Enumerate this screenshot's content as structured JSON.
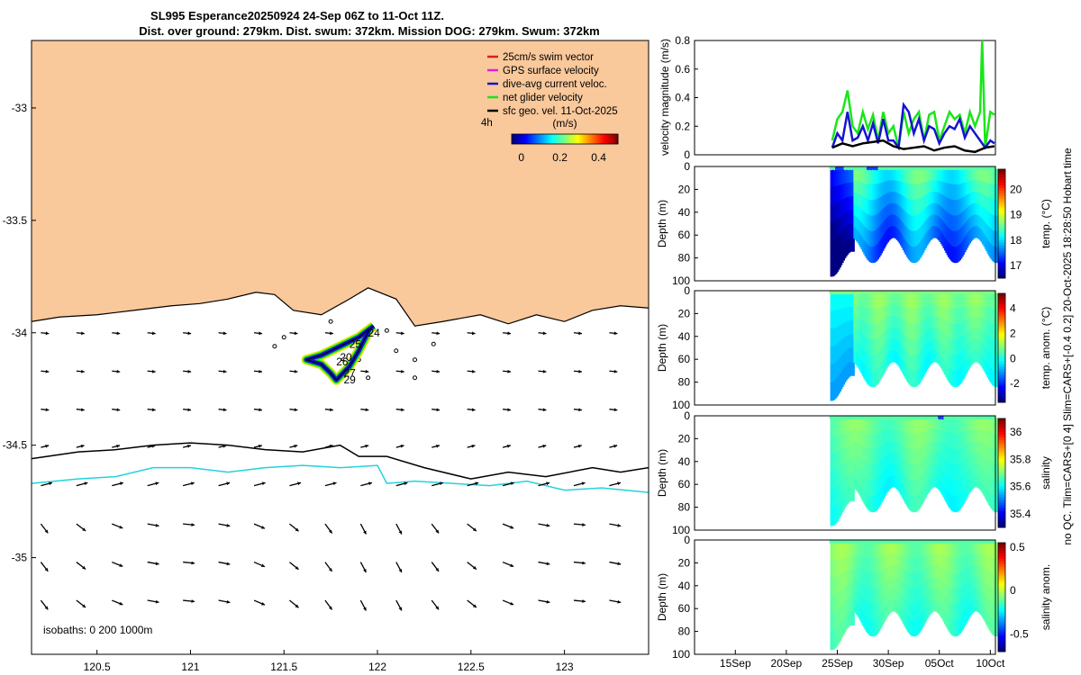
{
  "title": {
    "line1": "SL995 Esperance20250924 24-Sep 06Z to 11-Oct 11Z.",
    "line2": "Dist. over ground: 279km. Dist. swum: 372km. Mission DOG: 279km. Swum: 372km"
  },
  "side_text": "no QC. Tlim=CARS+[0 4] Slim=CARS+[-0.4 0.2] 20-Oct-2025 18:28:50 Hobart time",
  "colors": {
    "land": "#f9c89b",
    "coast": "#000000",
    "isobath1000": "#22d3dd",
    "green": "#19e619",
    "blue": "#1414d2"
  },
  "chart_data": [
    {
      "type": "map",
      "name": "glider track map",
      "xlim": [
        120.15,
        123.45
      ],
      "ylim": [
        -35.43,
        -32.7
      ],
      "x_ticks": [
        120.5,
        121,
        121.5,
        122,
        122.5,
        123
      ],
      "x_tick_labels": [
        "120.5",
        "121",
        "121.5",
        "122",
        "122.5",
        "123"
      ],
      "y_ticks": [
        -33,
        -33.5,
        -34,
        -34.5,
        -35
      ],
      "y_tick_labels": [
        "-33",
        "-33.5",
        "-34",
        "-34.5",
        "-35"
      ],
      "legend": [
        {
          "label": "25cm/s swim vector",
          "color": "#d62020"
        },
        {
          "label": "GPS surface velocity",
          "color": "#e020e0"
        },
        {
          "label": "dive-avg current veloc.",
          "color": "#1414d2"
        },
        {
          "label": "net glider velocity",
          "color": "#19e619"
        },
        {
          "label": "sfc geo. vel. 11-Oct-2025",
          "color": "#000000"
        }
      ],
      "legend_marker_label": "4h",
      "colorbar": {
        "label": "(m/s)",
        "ticks": [
          0,
          0.2,
          0.4
        ],
        "tick_labels": [
          "0",
          "0.2",
          "0.4"
        ],
        "range": [
          -0.05,
          0.5
        ]
      },
      "isobaths_label": "isobaths: 0   200  1000m",
      "track_labels": [
        "24",
        "25",
        "20",
        "27",
        "29",
        "26"
      ],
      "coastline": [
        [
          120.15,
          -33.95
        ],
        [
          120.3,
          -33.93
        ],
        [
          120.5,
          -33.92
        ],
        [
          120.7,
          -33.9
        ],
        [
          120.9,
          -33.88
        ],
        [
          121.05,
          -33.87
        ],
        [
          121.2,
          -33.85
        ],
        [
          121.35,
          -33.82
        ],
        [
          121.45,
          -33.83
        ],
        [
          121.55,
          -33.9
        ],
        [
          121.7,
          -33.92
        ],
        [
          121.85,
          -33.85
        ],
        [
          121.95,
          -33.8
        ],
        [
          122.1,
          -33.85
        ],
        [
          122.2,
          -33.97
        ],
        [
          122.35,
          -33.95
        ],
        [
          122.55,
          -33.92
        ],
        [
          122.7,
          -33.96
        ],
        [
          122.85,
          -33.92
        ],
        [
          123.0,
          -33.95
        ],
        [
          123.15,
          -33.9
        ],
        [
          123.3,
          -33.88
        ],
        [
          123.45,
          -33.89
        ]
      ],
      "isobath_200": [
        [
          120.15,
          -34.56
        ],
        [
          120.4,
          -34.53
        ],
        [
          120.6,
          -34.52
        ],
        [
          120.8,
          -34.5
        ],
        [
          121.0,
          -34.49
        ],
        [
          121.2,
          -34.5
        ],
        [
          121.4,
          -34.52
        ],
        [
          121.6,
          -34.53
        ],
        [
          121.8,
          -34.5
        ],
        [
          121.9,
          -34.55
        ],
        [
          122.05,
          -34.55
        ],
        [
          122.25,
          -34.6
        ],
        [
          122.5,
          -34.65
        ],
        [
          122.7,
          -34.62
        ],
        [
          122.9,
          -34.64
        ],
        [
          123.15,
          -34.6
        ],
        [
          123.3,
          -34.62
        ],
        [
          123.45,
          -34.6
        ]
      ],
      "isobath_1000": [
        [
          120.15,
          -34.67
        ],
        [
          120.4,
          -34.65
        ],
        [
          120.6,
          -34.64
        ],
        [
          120.8,
          -34.6
        ],
        [
          121.0,
          -34.6
        ],
        [
          121.2,
          -34.62
        ],
        [
          121.4,
          -34.6
        ],
        [
          121.6,
          -34.59
        ],
        [
          121.8,
          -34.6
        ],
        [
          122.0,
          -34.59
        ],
        [
          122.05,
          -34.67
        ],
        [
          122.2,
          -34.66
        ],
        [
          122.4,
          -34.67
        ],
        [
          122.6,
          -34.68
        ],
        [
          122.8,
          -34.66
        ],
        [
          123.0,
          -34.7
        ],
        [
          123.2,
          -34.69
        ],
        [
          123.45,
          -34.71
        ]
      ],
      "track": [
        [
          121.98,
          -33.97
        ],
        [
          121.9,
          -34.02
        ],
        [
          121.8,
          -34.06
        ],
        [
          121.7,
          -34.1
        ],
        [
          121.62,
          -34.12
        ],
        [
          121.7,
          -34.14
        ],
        [
          121.75,
          -34.18
        ],
        [
          121.78,
          -34.21
        ],
        [
          121.85,
          -34.15
        ],
        [
          121.9,
          -34.08
        ],
        [
          121.96,
          -33.98
        ]
      ]
    },
    {
      "type": "line",
      "name": "velocity magnitude",
      "ylabel": "velocity magnitude (m/s)",
      "ylim": [
        0,
        0.8
      ],
      "y_ticks": [
        0,
        0.2,
        0.4,
        0.6,
        0.8
      ],
      "x_range_days": [
        11,
        40.5
      ],
      "x_ticks_days": [
        15,
        20,
        25,
        30,
        35,
        40
      ],
      "x_tick_labels": [
        "15Sep",
        "20Sep",
        "25Sep",
        "30Sep",
        "05Oct",
        "10Oct"
      ],
      "series": [
        {
          "name": "net glider velocity",
          "color": "#19e619",
          "x": [
            24.5,
            25,
            25.5,
            26,
            26.5,
            27,
            27.5,
            28,
            28.5,
            29,
            29.5,
            30,
            30.5,
            31,
            31.5,
            32,
            32.5,
            33,
            33.5,
            34,
            34.5,
            35,
            35.5,
            36,
            36.5,
            37,
            37.5,
            38,
            38.5,
            39,
            39.2,
            39.5,
            40,
            40.4
          ],
          "y": [
            0.1,
            0.25,
            0.3,
            0.45,
            0.2,
            0.15,
            0.3,
            0.18,
            0.28,
            0.1,
            0.3,
            0.15,
            0.2,
            0.05,
            0.3,
            0.15,
            0.25,
            0.3,
            0.1,
            0.28,
            0.3,
            0.1,
            0.2,
            0.3,
            0.25,
            0.28,
            0.15,
            0.3,
            0.2,
            0.3,
            0.8,
            0.05,
            0.3,
            0.28
          ]
        },
        {
          "name": "dive-avg current veloc.",
          "color": "#1414d2",
          "x": [
            24.5,
            25,
            25.5,
            26,
            26.5,
            27,
            27.5,
            28,
            28.5,
            29,
            29.5,
            30,
            30.5,
            31,
            31.5,
            32,
            32.5,
            33,
            33.5,
            34,
            34.5,
            35,
            35.5,
            36,
            36.5,
            37,
            37.5,
            38,
            38.5,
            39,
            39.5,
            40,
            40.4
          ],
          "y": [
            0.05,
            0.15,
            0.1,
            0.3,
            0.1,
            0.12,
            0.2,
            0.1,
            0.22,
            0.08,
            0.25,
            0.1,
            0.1,
            0.05,
            0.35,
            0.3,
            0.15,
            0.25,
            0.1,
            0.2,
            0.18,
            0.08,
            0.15,
            0.2,
            0.18,
            0.25,
            0.12,
            0.2,
            0.15,
            0.1,
            0.05,
            0.1,
            0.08
          ]
        },
        {
          "name": "sfc geo. vel.",
          "color": "#000000",
          "x": [
            24.5,
            25.5,
            26.5,
            27.5,
            28.5,
            29.5,
            30.5,
            31.5,
            32.5,
            33.5,
            34.5,
            35.5,
            36.5,
            37.5,
            38.5,
            39.5,
            40.4
          ],
          "y": [
            0.05,
            0.08,
            0.06,
            0.08,
            0.09,
            0.1,
            0.06,
            0.04,
            0.05,
            0.06,
            0.03,
            0.05,
            0.06,
            0.03,
            0.02,
            0.05,
            0.06
          ]
        }
      ]
    },
    {
      "type": "heatmap",
      "name": "temp",
      "ylabel": "Depth (m)",
      "cbar_label": "temp. (°C)",
      "cbar_ticks": [
        17,
        18,
        19,
        20
      ],
      "clim": [
        16.5,
        20.8
      ],
      "ylim": [
        0,
        100
      ],
      "y_ticks": [
        0,
        20,
        40,
        60,
        80,
        100
      ]
    },
    {
      "type": "heatmap",
      "name": "temp anomaly",
      "ylabel": "Depth (m)",
      "cbar_label": "temp. anom. (°C)",
      "cbar_ticks": [
        -2,
        0,
        2,
        4
      ],
      "clim": [
        -3.5,
        5.2
      ],
      "ylim": [
        0,
        100
      ],
      "y_ticks": [
        0,
        20,
        40,
        60,
        80,
        100
      ]
    },
    {
      "type": "heatmap",
      "name": "salinity",
      "ylabel": "Depth (m)",
      "cbar_label": "salinity",
      "cbar_ticks": [
        35.4,
        35.6,
        35.8,
        36
      ],
      "cbar_tick_labels": [
        "35.4",
        "35.6",
        "35.8",
        "36"
      ],
      "clim": [
        35.3,
        36.1
      ],
      "ylim": [
        0,
        100
      ],
      "y_ticks": [
        0,
        20,
        40,
        60,
        80,
        100
      ]
    },
    {
      "type": "heatmap",
      "name": "salinity anomaly",
      "ylabel": "Depth (m)",
      "cbar_label": "salinity anom.",
      "cbar_ticks": [
        -0.5,
        0,
        0.5
      ],
      "cbar_tick_labels": [
        "-0.5",
        "0",
        "0.5"
      ],
      "clim": [
        -0.7,
        0.55
      ],
      "ylim": [
        0,
        100
      ],
      "y_ticks": [
        0,
        20,
        40,
        60,
        80,
        100
      ]
    }
  ]
}
